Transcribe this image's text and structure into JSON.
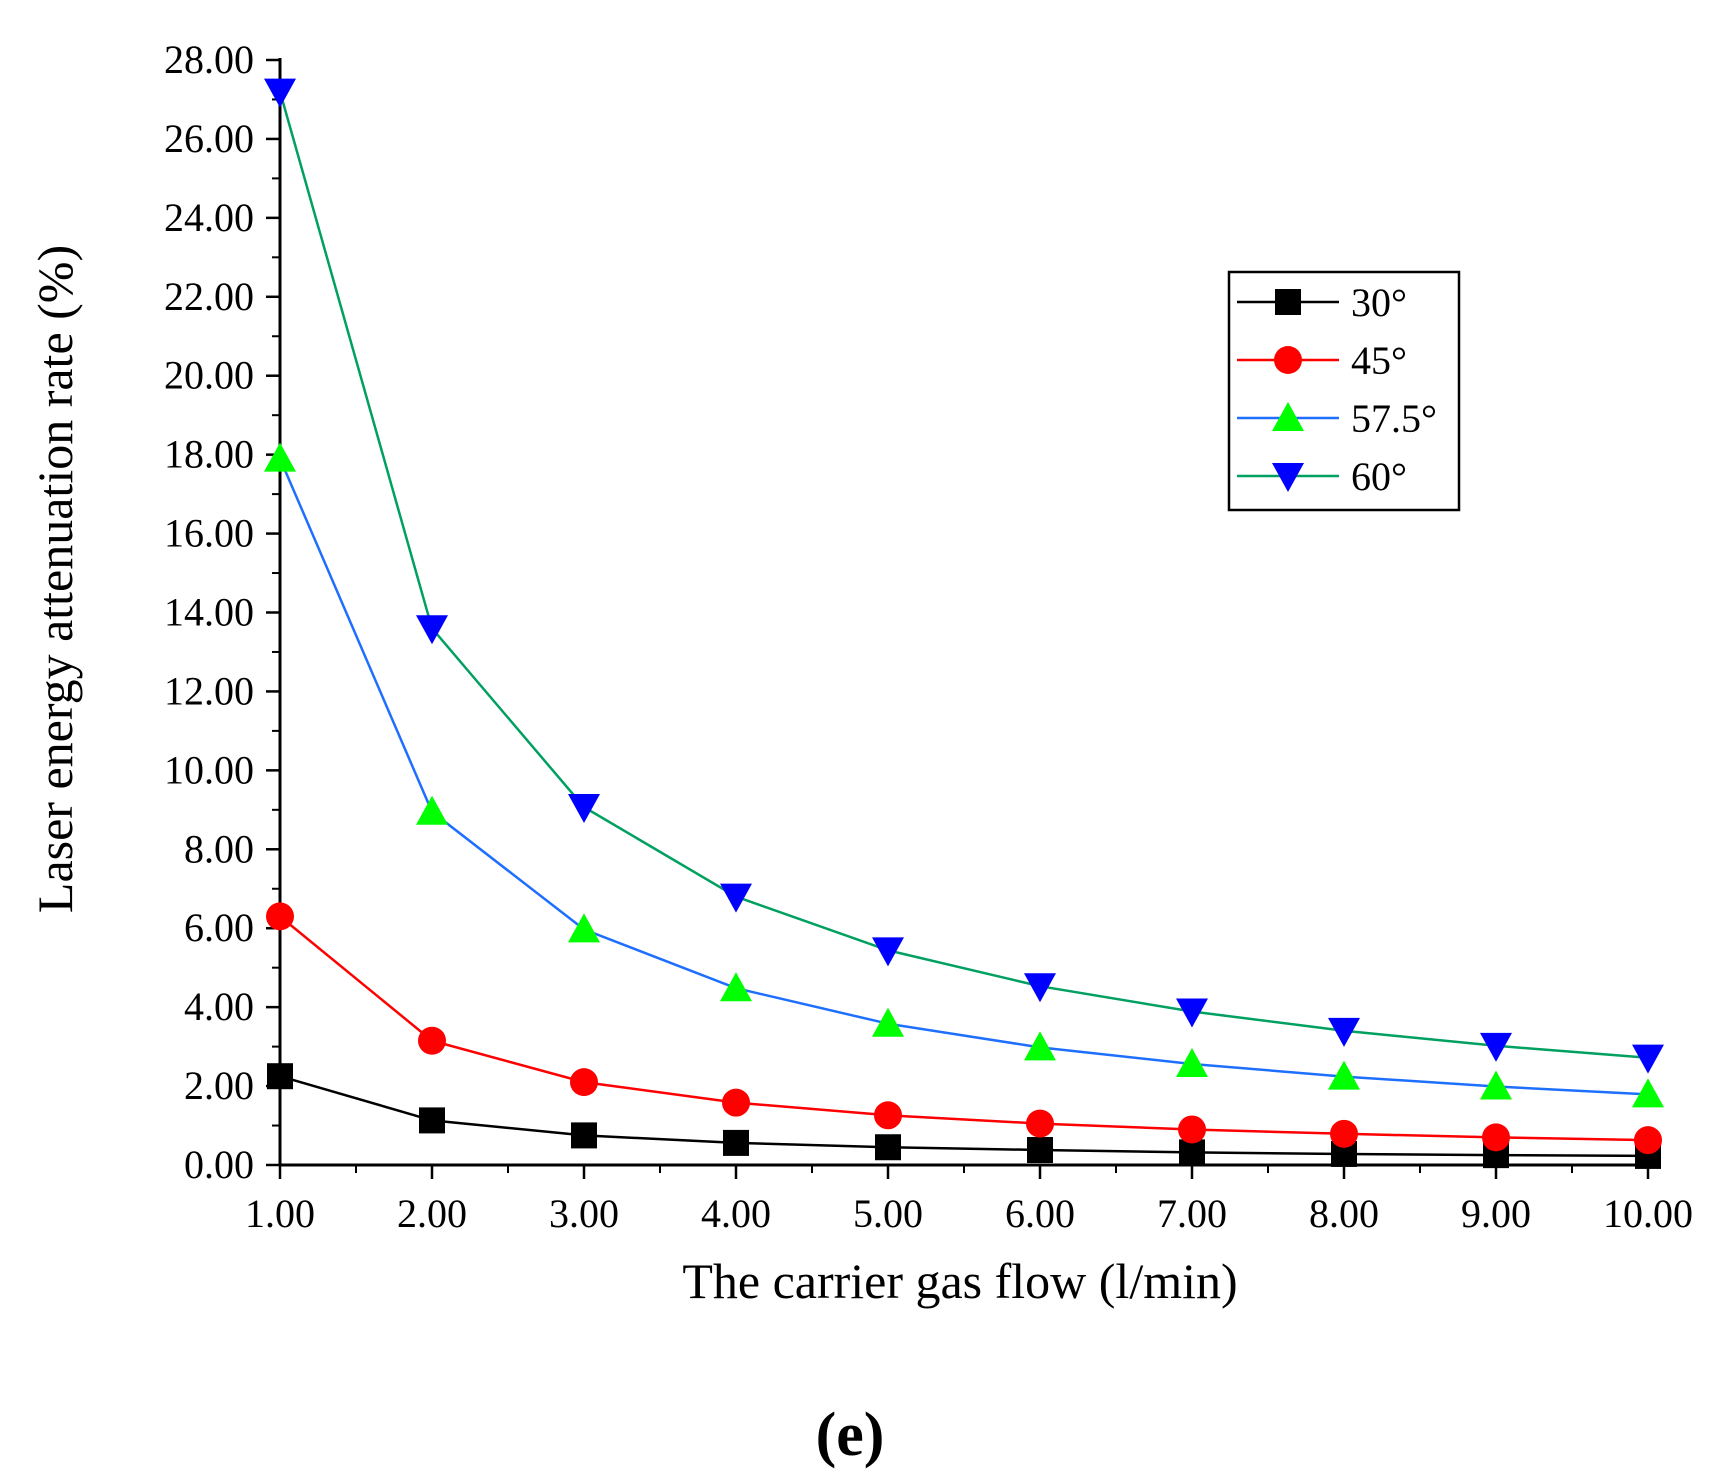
{
  "chart_data": {
    "type": "line",
    "xlabel": "The carrier gas flow (l/min)",
    "ylabel": "Laser energy attenuation rate (%)",
    "x": [
      1,
      2,
      3,
      4,
      5,
      6,
      7,
      8,
      9,
      10
    ],
    "xlim": [
      1,
      10
    ],
    "ylim": [
      0,
      28
    ],
    "x_ticks": [
      "1.00",
      "2.00",
      "3.00",
      "4.00",
      "5.00",
      "6.00",
      "7.00",
      "8.00",
      "9.00",
      "10.00"
    ],
    "y_ticks": [
      "0.00",
      "2.00",
      "4.00",
      "6.00",
      "8.00",
      "10.00",
      "12.00",
      "14.00",
      "16.00",
      "18.00",
      "20.00",
      "22.00",
      "24.00",
      "26.00",
      "28.00"
    ],
    "grid": false,
    "legend_position": "top-right",
    "series": [
      {
        "name": "30°",
        "line_color": "#000000",
        "marker": "square",
        "marker_color": "#000000",
        "values": [
          2.25,
          1.13,
          0.75,
          0.56,
          0.45,
          0.38,
          0.32,
          0.28,
          0.25,
          0.23
        ]
      },
      {
        "name": "45°",
        "line_color": "#ff0000",
        "marker": "circle",
        "marker_color": "#ff0000",
        "values": [
          6.3,
          3.15,
          2.1,
          1.58,
          1.26,
          1.05,
          0.9,
          0.79,
          0.7,
          0.63
        ]
      },
      {
        "name": "57.5°",
        "line_color": "#1f6fff",
        "marker": "triangle-up",
        "marker_color": "#00ff00",
        "values": [
          17.9,
          8.95,
          5.97,
          4.48,
          3.58,
          2.98,
          2.56,
          2.24,
          1.99,
          1.79
        ]
      },
      {
        "name": "60°",
        "line_color": "#00a060",
        "marker": "triangle-down",
        "marker_color": "#0000ff",
        "values": [
          27.2,
          13.6,
          9.07,
          6.8,
          5.44,
          4.53,
          3.89,
          3.4,
          3.02,
          2.72
        ]
      }
    ]
  },
  "panel_label": "(e)"
}
